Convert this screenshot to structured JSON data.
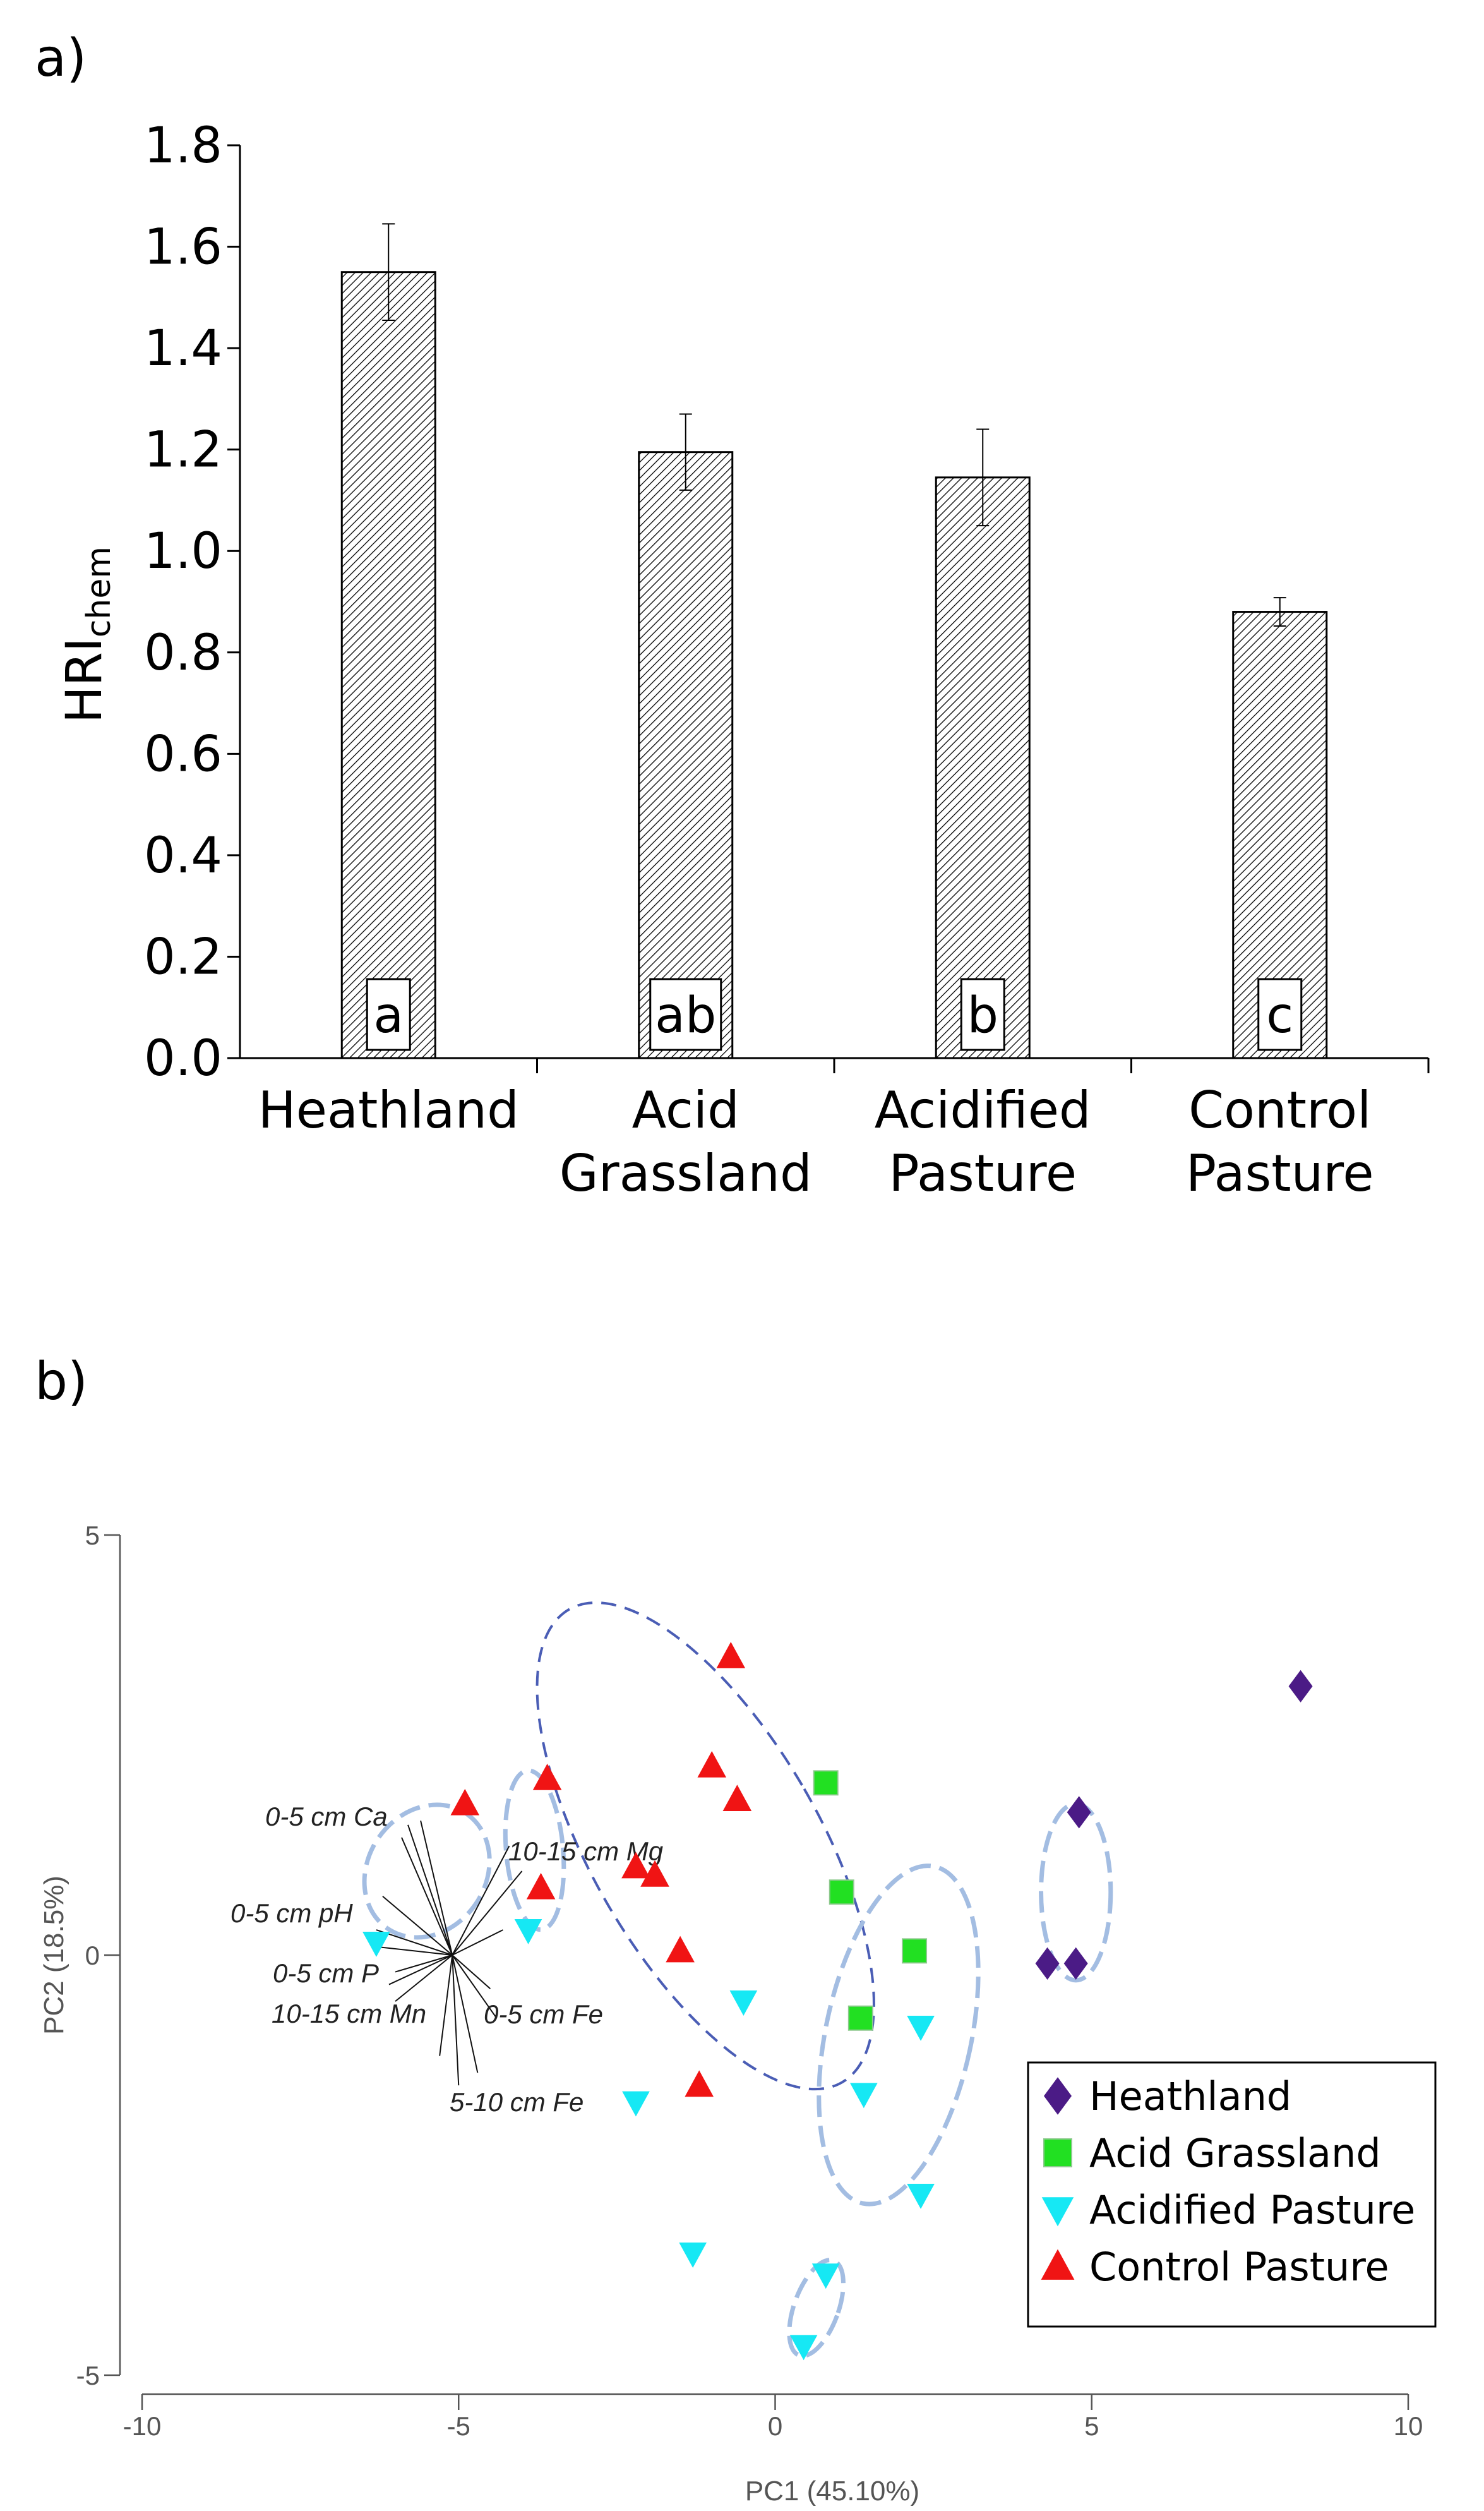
{
  "chart_data": [
    {
      "type": "bar",
      "panel_label": "a)",
      "categories": [
        "Heathland",
        "Acid Grassland",
        "Acidified Pasture",
        "Control Pasture"
      ],
      "category_lines": [
        [
          "Heathland"
        ],
        [
          "Acid",
          "Grassland"
        ],
        [
          "Acidified",
          "Pasture"
        ],
        [
          "Control",
          "Pasture"
        ]
      ],
      "values": [
        1.55,
        1.195,
        1.145,
        0.88
      ],
      "errors": [
        0.095,
        0.075,
        0.095,
        0.028
      ],
      "significance_letters": [
        "a",
        "ab",
        "b",
        "c"
      ],
      "ylabel_main": "HRI",
      "ylabel_sub": "chem",
      "ylim": [
        0,
        1.8
      ],
      "yticks": [
        "0.0",
        "0.2",
        "0.4",
        "0.6",
        "0.8",
        "1.0",
        "1.2",
        "1.4",
        "1.6",
        "1.8"
      ],
      "bar_fill": "diagonal hatch"
    },
    {
      "type": "scatter",
      "panel_label": "b)",
      "xlabel": "PC1 (45.10%)",
      "ylabel": "PC2 (18.5%)",
      "xlim": [
        -10,
        10
      ],
      "ylim": [
        -5,
        5
      ],
      "xticks": [
        "-10",
        "-5",
        "0",
        "5",
        "10"
      ],
      "yticks": [
        "-5",
        "0",
        "5"
      ],
      "series": [
        {
          "name": "Heathland",
          "marker": "diamond",
          "color": "#4b1b86",
          "points": [
            [
              8.3,
              3.2
            ],
            [
              4.8,
              1.7
            ],
            [
              4.3,
              -0.1
            ],
            [
              4.75,
              -0.1
            ]
          ]
        },
        {
          "name": "Acid Grassland",
          "marker": "square",
          "color": "#22e022",
          "points": [
            [
              0.8,
              2.05
            ],
            [
              1.05,
              0.75
            ],
            [
              2.2,
              0.05
            ],
            [
              1.35,
              -0.75
            ]
          ]
        },
        {
          "name": "Acidified Pasture",
          "marker": "triangle-down",
          "color": "#16e8f4",
          "points": [
            [
              -6.3,
              0.15
            ],
            [
              -3.9,
              0.3
            ],
            [
              -0.5,
              -0.55
            ],
            [
              2.3,
              -0.85
            ],
            [
              1.4,
              -1.65
            ],
            [
              -2.2,
              -1.75
            ],
            [
              2.3,
              -2.85
            ],
            [
              -1.3,
              -3.55
            ],
            [
              0.8,
              -3.8
            ],
            [
              0.45,
              -4.65
            ]
          ]
        },
        {
          "name": "Control Pasture",
          "marker": "triangle-up",
          "color": "#f01414",
          "points": [
            [
              -4.9,
              1.8
            ],
            [
              -3.6,
              2.1
            ],
            [
              -3.7,
              0.8
            ],
            [
              -0.7,
              3.55
            ],
            [
              -1.0,
              2.25
            ],
            [
              -0.6,
              1.85
            ],
            [
              -2.2,
              1.05
            ],
            [
              -1.9,
              0.95
            ],
            [
              -1.5,
              0.05
            ],
            [
              -1.2,
              -1.55
            ]
          ]
        }
      ],
      "vectors": [
        {
          "label": "0-5 cm Ca",
          "end": [
            -5.9,
            1.4
          ]
        },
        {
          "label": "10-15 cm Mg",
          "end": [
            -4.2,
            1.3
          ]
        },
        {
          "label": "0-5 cm pH",
          "end": [
            -6.3,
            0.3
          ]
        },
        {
          "label": "0-5 cm P",
          "end": [
            -6.0,
            -0.2
          ]
        },
        {
          "label": "10-15 cm Mn",
          "end": [
            -6.0,
            -0.55
          ]
        },
        {
          "label": "0-5 cm Fe",
          "end": [
            -4.4,
            -0.75
          ]
        },
        {
          "label": "5-10 cm Fe",
          "end": [
            -5.0,
            -1.55
          ]
        }
      ],
      "vector_origin": [
        -5.1,
        0.0
      ],
      "ellipses": [
        {
          "center": [
            -5.5,
            1.0
          ],
          "rx": 1.1,
          "ry": 0.7,
          "angle": -55,
          "style": "light-dash"
        },
        {
          "center": [
            -3.8,
            1.25
          ],
          "rx": 0.45,
          "ry": 0.95,
          "angle": -5,
          "style": "light-dash"
        },
        {
          "center": [
            -1.1,
            1.3
          ],
          "rx": 1.8,
          "ry": 3.25,
          "angle": -30,
          "style": "dark-dash"
        },
        {
          "center": [
            1.95,
            -0.95
          ],
          "rx": 1.15,
          "ry": 2.05,
          "angle": 12,
          "style": "light-dash"
        },
        {
          "center": [
            4.75,
            0.75
          ],
          "rx": 0.55,
          "ry": 1.05,
          "angle": 0,
          "style": "light-dash"
        },
        {
          "center": [
            0.65,
            -4.2
          ],
          "rx": 0.35,
          "ry": 0.6,
          "angle": 20,
          "style": "light-dash"
        }
      ],
      "legend_position": "bottom-right"
    }
  ]
}
